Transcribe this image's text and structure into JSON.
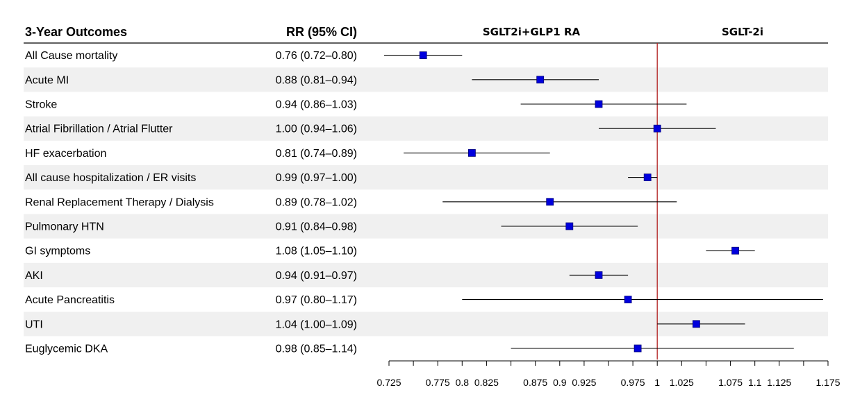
{
  "chart_data": {
    "type": "forest",
    "title": "3-Year Outcomes",
    "column_header_estimate": "RR (95% CI)",
    "favors_left_label": "SGLT2i+GLP1 RA",
    "favors_right_label": "SGLT-2i",
    "reference_value": 1,
    "xlim": [
      0.725,
      1.175
    ],
    "x_ticks": [
      0.725,
      0.75,
      0.775,
      0.8,
      0.825,
      0.85,
      0.875,
      0.9,
      0.925,
      0.95,
      0.975,
      1,
      1.025,
      1.05,
      1.075,
      1.1,
      1.125,
      1.15,
      1.175
    ],
    "x_tick_labels": [
      "0.725",
      "",
      "0.775",
      "0.8",
      "0.825",
      "",
      "0.875",
      "0.9",
      "0.925",
      "",
      "0.975",
      "1",
      "1.025",
      "",
      "1.075",
      "1.1",
      "1.125",
      "",
      "1.175"
    ],
    "rows": [
      {
        "outcome": "All Cause mortality",
        "text": "0.76 (0.72–0.80)",
        "rr": 0.76,
        "lo": 0.72,
        "hi": 0.8
      },
      {
        "outcome": "Acute MI",
        "text": "0.88 (0.81–0.94)",
        "rr": 0.88,
        "lo": 0.81,
        "hi": 0.94
      },
      {
        "outcome": "Stroke",
        "text": "0.94 (0.86–1.03)",
        "rr": 0.94,
        "lo": 0.86,
        "hi": 1.03
      },
      {
        "outcome": "Atrial Fibrillation / Atrial Flutter",
        "text": "1.00 (0.94–1.06)",
        "rr": 1.0,
        "lo": 0.94,
        "hi": 1.06
      },
      {
        "outcome": "HF exacerbation",
        "text": "0.81 (0.74–0.89)",
        "rr": 0.81,
        "lo": 0.74,
        "hi": 0.89
      },
      {
        "outcome": "All cause hospitalization / ER visits",
        "text": "0.99 (0.97–1.00)",
        "rr": 0.99,
        "lo": 0.97,
        "hi": 1.0
      },
      {
        "outcome": "Renal Replacement Therapy / Dialysis",
        "text": "0.89 (0.78–1.02)",
        "rr": 0.89,
        "lo": 0.78,
        "hi": 1.02
      },
      {
        "outcome": "Pulmonary HTN",
        "text": "0.91 (0.84–0.98)",
        "rr": 0.91,
        "lo": 0.84,
        "hi": 0.98
      },
      {
        "outcome": "GI symptoms",
        "text": "1.08 (1.05–1.10)",
        "rr": 1.08,
        "lo": 1.05,
        "hi": 1.1
      },
      {
        "outcome": "AKI",
        "text": "0.94 (0.91–0.97)",
        "rr": 0.94,
        "lo": 0.91,
        "hi": 0.97
      },
      {
        "outcome": "Acute Pancreatitis",
        "text": "0.97 (0.80–1.17)",
        "rr": 0.97,
        "lo": 0.8,
        "hi": 1.17
      },
      {
        "outcome": "UTI",
        "text": "1.04 (1.00–1.09)",
        "rr": 1.04,
        "lo": 1.0,
        "hi": 1.09
      },
      {
        "outcome": "Euglycemic DKA",
        "text": "0.98 (0.85–1.14)",
        "rr": 0.98,
        "lo": 0.85,
        "hi": 1.14
      }
    ],
    "colors": {
      "marker": "#0000dd",
      "marker_edge": "#00007a",
      "ci_line": "#000000",
      "reference_line": "#b22222",
      "stripe": "#f0f0f0"
    }
  }
}
